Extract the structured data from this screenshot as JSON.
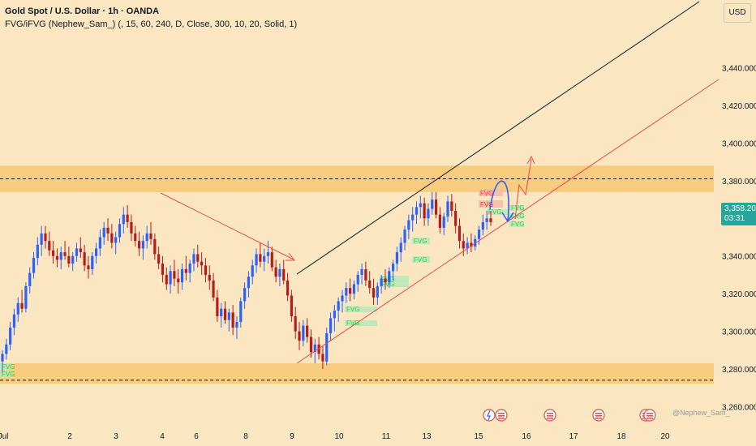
{
  "header": {
    "title": "Gold Spot / U.S. Dollar · 1h · OANDA",
    "indicator": "FVG/iFVG (Nephew_Sam_) (, 15, 60, 240, D, Close, 300, 10, 20, Solid, 1)"
  },
  "price_axis": {
    "currency": "USD",
    "current_price": "3,358.200",
    "countdown": "03:31"
  },
  "watermark": "@Nephew_Sam_",
  "colors": {
    "background": "#fbe6c2",
    "zone": "#f8cc7e",
    "up_candle": "#2962ff",
    "down_candle": "#b71c1c",
    "fvg_bull": "#b7e8b9",
    "fvg_bear": "#f7b9a8",
    "fvg_text": "#2bd14a",
    "trendline_black": "#131722",
    "trendline_red": "#e84b4b",
    "projection": "#2962ff",
    "price_tag": "#26a69a"
  },
  "chart_data": {
    "type": "candlestick",
    "symbol": "Gold Spot / U.S. Dollar",
    "interval": "1h",
    "source": "OANDA",
    "ylim": [
      3252,
      3476
    ],
    "y_ticks": [
      "3,260.000",
      "3,280.000",
      "3,300.000",
      "3,320.000",
      "3,340.000",
      "3,360.000",
      "3,380.000",
      "3,400.000",
      "3,420.000",
      "3,440.000"
    ],
    "x_ticks": [
      "Jul",
      "2",
      "3",
      "4",
      "6",
      "8",
      "9",
      "10",
      "11",
      "13",
      "15",
      "16",
      "17",
      "18",
      "20"
    ],
    "resistance_level": 3381,
    "resistance_zone": [
      3374,
      3388
    ],
    "support_level": 3274,
    "support_zone": [
      3272,
      3283
    ],
    "fvg_labels": [
      "FVG",
      "FVG",
      "FVG",
      "FVG",
      "FVG",
      "FVG",
      "FVG",
      "FVG",
      "FVG",
      "FVG",
      "FVG",
      "FVG",
      "FVG",
      "FVG"
    ],
    "candles": [
      [
        3284,
        3290,
        3278,
        3288
      ],
      [
        3288,
        3296,
        3285,
        3293
      ],
      [
        3293,
        3305,
        3290,
        3302
      ],
      [
        3302,
        3312,
        3298,
        3309
      ],
      [
        3309,
        3318,
        3305,
        3315
      ],
      [
        3315,
        3322,
        3310,
        3312
      ],
      [
        3312,
        3326,
        3310,
        3324
      ],
      [
        3324,
        3334,
        3320,
        3331
      ],
      [
        3331,
        3342,
        3328,
        3339
      ],
      [
        3339,
        3350,
        3335,
        3346
      ],
      [
        3346,
        3356,
        3340,
        3352
      ],
      [
        3352,
        3356,
        3344,
        3348
      ],
      [
        3348,
        3353,
        3340,
        3343
      ],
      [
        3343,
        3348,
        3336,
        3340
      ],
      [
        3340,
        3344,
        3334,
        3338
      ],
      [
        3338,
        3345,
        3333,
        3342
      ],
      [
        3342,
        3348,
        3338,
        3340
      ],
      [
        3340,
        3345,
        3334,
        3336
      ],
      [
        3336,
        3342,
        3332,
        3340
      ],
      [
        3340,
        3347,
        3337,
        3344
      ],
      [
        3344,
        3350,
        3339,
        3342
      ],
      [
        3342,
        3346,
        3332,
        3335
      ],
      [
        3335,
        3340,
        3328,
        3333
      ],
      [
        3333,
        3342,
        3330,
        3340
      ],
      [
        3340,
        3347,
        3336,
        3344
      ],
      [
        3344,
        3354,
        3340,
        3350
      ],
      [
        3350,
        3358,
        3346,
        3355
      ],
      [
        3355,
        3360,
        3348,
        3352
      ],
      [
        3352,
        3357,
        3344,
        3347
      ],
      [
        3347,
        3353,
        3341,
        3350
      ],
      [
        3350,
        3360,
        3347,
        3357
      ],
      [
        3357,
        3366,
        3352,
        3362
      ],
      [
        3362,
        3367,
        3355,
        3358
      ],
      [
        3358,
        3362,
        3348,
        3352
      ],
      [
        3352,
        3356,
        3345,
        3348
      ],
      [
        3348,
        3353,
        3340,
        3344
      ],
      [
        3344,
        3351,
        3338,
        3348
      ],
      [
        3348,
        3356,
        3344,
        3352
      ],
      [
        3352,
        3358,
        3346,
        3349
      ],
      [
        3349,
        3352,
        3338,
        3341
      ],
      [
        3341,
        3345,
        3333,
        3336
      ],
      [
        3336,
        3340,
        3326,
        3330
      ],
      [
        3330,
        3334,
        3322,
        3325
      ],
      [
        3325,
        3335,
        3320,
        3332
      ],
      [
        3332,
        3338,
        3324,
        3328
      ],
      [
        3328,
        3333,
        3320,
        3326
      ],
      [
        3326,
        3336,
        3322,
        3333
      ],
      [
        3333,
        3340,
        3327,
        3331
      ],
      [
        3331,
        3338,
        3326,
        3336
      ],
      [
        3336,
        3344,
        3332,
        3341
      ],
      [
        3341,
        3346,
        3334,
        3337
      ],
      [
        3337,
        3342,
        3330,
        3335
      ],
      [
        3335,
        3339,
        3326,
        3330
      ],
      [
        3330,
        3335,
        3322,
        3327
      ],
      [
        3327,
        3331,
        3316,
        3318
      ],
      [
        3318,
        3322,
        3305,
        3308
      ],
      [
        3308,
        3315,
        3302,
        3312
      ],
      [
        3312,
        3316,
        3304,
        3306
      ],
      [
        3306,
        3312,
        3300,
        3310
      ],
      [
        3310,
        3314,
        3298,
        3302
      ],
      [
        3302,
        3308,
        3296,
        3305
      ],
      [
        3305,
        3318,
        3302,
        3316
      ],
      [
        3316,
        3326,
        3312,
        3323
      ],
      [
        3323,
        3332,
        3318,
        3329
      ],
      [
        3329,
        3338,
        3325,
        3335
      ],
      [
        3335,
        3344,
        3331,
        3341
      ],
      [
        3341,
        3347,
        3334,
        3337
      ],
      [
        3337,
        3344,
        3332,
        3340
      ],
      [
        3340,
        3348,
        3336,
        3342
      ],
      [
        3342,
        3345,
        3332,
        3334
      ],
      [
        3334,
        3338,
        3326,
        3329
      ],
      [
        3329,
        3336,
        3324,
        3333
      ],
      [
        3333,
        3338,
        3325,
        3327
      ],
      [
        3327,
        3331,
        3316,
        3319
      ],
      [
        3319,
        3322,
        3305,
        3308
      ],
      [
        3308,
        3313,
        3296,
        3300
      ],
      [
        3300,
        3305,
        3290,
        3295
      ],
      [
        3295,
        3306,
        3292,
        3303
      ],
      [
        3303,
        3307,
        3294,
        3297
      ],
      [
        3297,
        3301,
        3286,
        3289
      ],
      [
        3289,
        3296,
        3283,
        3293
      ],
      [
        3293,
        3297,
        3285,
        3288
      ],
      [
        3288,
        3292,
        3280,
        3284
      ],
      [
        3284,
        3302,
        3282,
        3299
      ],
      [
        3299,
        3310,
        3295,
        3307
      ],
      [
        3307,
        3314,
        3300,
        3311
      ],
      [
        3311,
        3318,
        3305,
        3316
      ],
      [
        3316,
        3322,
        3310,
        3319
      ],
      [
        3319,
        3326,
        3315,
        3323
      ],
      [
        3323,
        3328,
        3316,
        3320
      ],
      [
        3320,
        3327,
        3317,
        3325
      ],
      [
        3325,
        3332,
        3321,
        3330
      ],
      [
        3330,
        3336,
        3325,
        3333
      ],
      [
        3333,
        3337,
        3324,
        3327
      ],
      [
        3327,
        3332,
        3320,
        3323
      ],
      [
        3323,
        3328,
        3314,
        3318
      ],
      [
        3318,
        3326,
        3314,
        3324
      ],
      [
        3324,
        3330,
        3320,
        3328
      ],
      [
        3328,
        3333,
        3322,
        3326
      ],
      [
        3326,
        3334,
        3323,
        3332
      ],
      [
        3332,
        3338,
        3327,
        3336
      ],
      [
        3336,
        3345,
        3332,
        3342
      ],
      [
        3342,
        3350,
        3337,
        3347
      ],
      [
        3347,
        3356,
        3343,
        3354
      ],
      [
        3354,
        3362,
        3349,
        3359
      ],
      [
        3359,
        3366,
        3353,
        3362
      ],
      [
        3362,
        3369,
        3357,
        3366
      ],
      [
        3366,
        3372,
        3360,
        3368
      ],
      [
        3368,
        3371,
        3356,
        3360
      ],
      [
        3360,
        3368,
        3356,
        3365
      ],
      [
        3365,
        3374,
        3362,
        3370
      ],
      [
        3370,
        3374,
        3360,
        3362
      ],
      [
        3362,
        3366,
        3352,
        3355
      ],
      [
        3355,
        3363,
        3351,
        3361
      ],
      [
        3361,
        3372,
        3358,
        3369
      ],
      [
        3369,
        3373,
        3361,
        3364
      ],
      [
        3364,
        3368,
        3352,
        3356
      ],
      [
        3356,
        3360,
        3344,
        3348
      ],
      [
        3348,
        3352,
        3340,
        3344
      ],
      [
        3344,
        3350,
        3341,
        3347
      ],
      [
        3347,
        3352,
        3342,
        3345
      ],
      [
        3345,
        3351,
        3343,
        3349
      ],
      [
        3349,
        3356,
        3346,
        3354
      ],
      [
        3354,
        3362,
        3351,
        3358
      ],
      [
        3358,
        3364,
        3354,
        3360
      ],
      [
        3360,
        3364,
        3356,
        3358
      ]
    ]
  }
}
